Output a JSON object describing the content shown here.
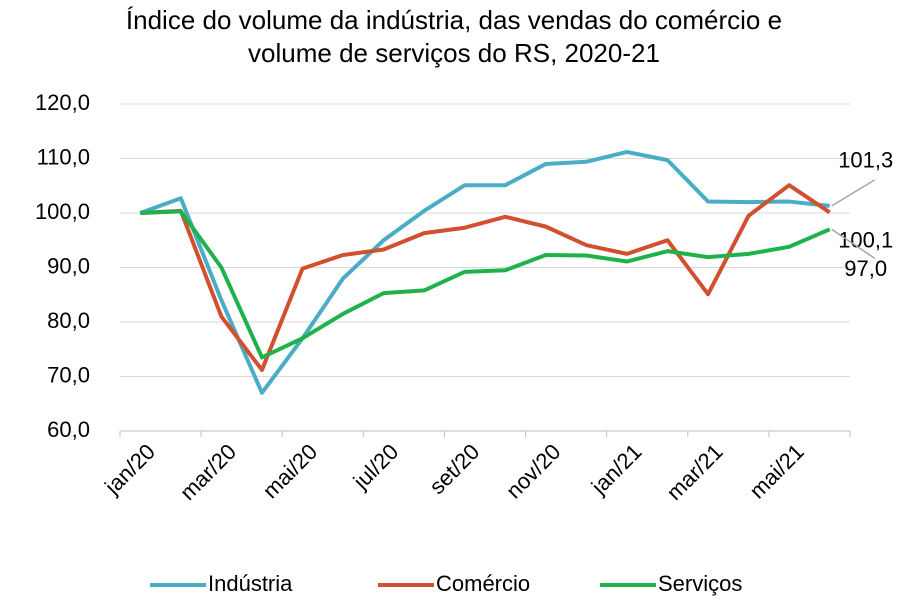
{
  "chart_data": {
    "type": "line",
    "title": "Índice do volume da indústria, das vendas do comércio e volume de serviços do RS, 2020-21",
    "categories": [
      "jan/20",
      null,
      "mar/20",
      null,
      "mai/20",
      null,
      "jul/20",
      null,
      "set/20",
      null,
      "nov/20",
      null,
      "jan/21",
      null,
      "mar/21",
      null,
      "mai/21",
      null
    ],
    "series": [
      {
        "name": "Indústria",
        "color": "#4bacc6",
        "values": [
          100,
          102.7,
          84,
          67,
          77,
          88,
          95,
          100.4,
          105.1,
          105.1,
          109,
          109.4,
          111.2,
          109.7,
          102.1,
          102,
          102.1,
          101.3
        ],
        "value_labels": [
          null,
          null,
          null,
          null,
          null,
          null,
          null,
          null,
          null,
          null,
          null,
          null,
          null,
          null,
          null,
          null,
          null,
          "101,3"
        ]
      },
      {
        "name": "Comércio",
        "color": "#d0502f",
        "values": [
          100,
          100.4,
          81,
          71.2,
          89.8,
          92.3,
          93.3,
          96.3,
          97.3,
          99.3,
          97.5,
          94.1,
          92.5,
          95,
          85.1,
          99.5,
          105.1,
          100.1
        ],
        "value_labels": [
          null,
          null,
          null,
          null,
          null,
          null,
          null,
          null,
          null,
          null,
          null,
          null,
          null,
          null,
          null,
          null,
          null,
          "100,1"
        ]
      },
      {
        "name": "Serviços",
        "color": "#1fb24a",
        "values": [
          100,
          100.3,
          90,
          73.5,
          77,
          81.5,
          85.3,
          85.8,
          89.2,
          89.5,
          92.3,
          92.2,
          91.1,
          93,
          91.9,
          92.5,
          93.8,
          97.0
        ],
        "value_labels": [
          null,
          null,
          null,
          null,
          null,
          null,
          null,
          null,
          null,
          null,
          null,
          null,
          null,
          null,
          null,
          null,
          null,
          "97,0"
        ]
      }
    ],
    "ylim": [
      60,
      120
    ],
    "yticks": [
      {
        "value": 60,
        "label": "60,0"
      },
      {
        "value": 70,
        "label": "70,0"
      },
      {
        "value": 80,
        "label": "80,0"
      },
      {
        "value": 90,
        "label": "90,0"
      },
      {
        "value": 100,
        "label": "100,0"
      },
      {
        "value": 110,
        "label": "110,0"
      },
      {
        "value": 120,
        "label": "120,0"
      }
    ],
    "grid": true,
    "legend": "bottom"
  }
}
